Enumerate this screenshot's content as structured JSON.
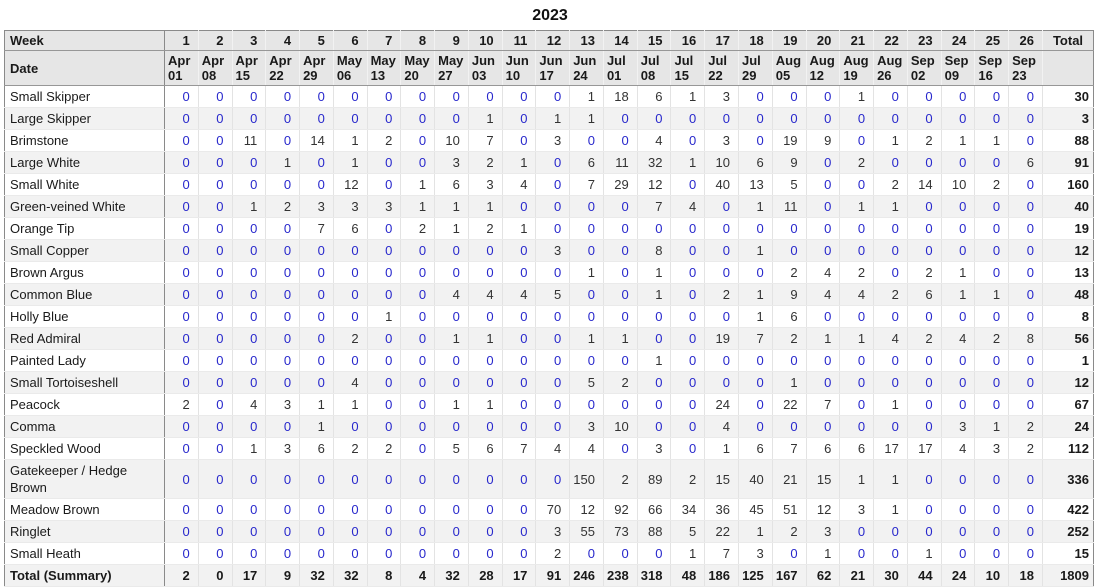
{
  "chart_data": {
    "type": "table",
    "title": "2023",
    "labels": {
      "week": "Week",
      "date": "Date",
      "total": "Total"
    },
    "weeks": [
      "1",
      "2",
      "3",
      "4",
      "5",
      "6",
      "7",
      "8",
      "9",
      "10",
      "11",
      "12",
      "13",
      "14",
      "15",
      "16",
      "17",
      "18",
      "19",
      "20",
      "21",
      "22",
      "23",
      "24",
      "25",
      "26"
    ],
    "dates": [
      "Apr 01",
      "Apr 08",
      "Apr 15",
      "Apr 22",
      "Apr 29",
      "May 06",
      "May 13",
      "May 20",
      "May 27",
      "Jun 03",
      "Jun 10",
      "Jun 17",
      "Jun 24",
      "Jul 01",
      "Jul 08",
      "Jul 15",
      "Jul 22",
      "Jul 29",
      "Aug 05",
      "Aug 12",
      "Aug 19",
      "Aug 26",
      "Sep 02",
      "Sep 09",
      "Sep 16",
      "Sep 23"
    ],
    "series": [
      {
        "name": "Small Skipper",
        "values": [
          0,
          0,
          0,
          0,
          0,
          0,
          0,
          0,
          0,
          0,
          0,
          0,
          1,
          18,
          6,
          1,
          3,
          0,
          0,
          0,
          1,
          0,
          0,
          0,
          0,
          0
        ],
        "total": 30
      },
      {
        "name": "Large Skipper",
        "values": [
          0,
          0,
          0,
          0,
          0,
          0,
          0,
          0,
          0,
          1,
          0,
          1,
          1,
          0,
          0,
          0,
          0,
          0,
          0,
          0,
          0,
          0,
          0,
          0,
          0,
          0
        ],
        "total": 3
      },
      {
        "name": "Brimstone",
        "values": [
          0,
          0,
          11,
          0,
          14,
          1,
          2,
          0,
          10,
          7,
          0,
          3,
          0,
          0,
          4,
          0,
          3,
          0,
          19,
          9,
          0,
          1,
          2,
          1,
          1,
          0
        ],
        "total": 88
      },
      {
        "name": "Large White",
        "values": [
          0,
          0,
          0,
          1,
          0,
          1,
          0,
          0,
          3,
          2,
          1,
          0,
          6,
          11,
          32,
          1,
          10,
          6,
          9,
          0,
          2,
          0,
          0,
          0,
          0,
          6
        ],
        "total": 91
      },
      {
        "name": "Small White",
        "values": [
          0,
          0,
          0,
          0,
          0,
          12,
          0,
          1,
          6,
          3,
          4,
          0,
          7,
          29,
          12,
          0,
          40,
          13,
          5,
          0,
          0,
          2,
          14,
          10,
          2,
          0
        ],
        "total": 160
      },
      {
        "name": "Green-veined White",
        "values": [
          0,
          0,
          1,
          2,
          3,
          3,
          3,
          1,
          1,
          1,
          0,
          0,
          0,
          0,
          7,
          4,
          0,
          1,
          11,
          0,
          1,
          1,
          0,
          0,
          0,
          0
        ],
        "total": 40
      },
      {
        "name": "Orange Tip",
        "values": [
          0,
          0,
          0,
          0,
          7,
          6,
          0,
          2,
          1,
          2,
          1,
          0,
          0,
          0,
          0,
          0,
          0,
          0,
          0,
          0,
          0,
          0,
          0,
          0,
          0,
          0
        ],
        "total": 19
      },
      {
        "name": "Small Copper",
        "values": [
          0,
          0,
          0,
          0,
          0,
          0,
          0,
          0,
          0,
          0,
          0,
          3,
          0,
          0,
          8,
          0,
          0,
          1,
          0,
          0,
          0,
          0,
          0,
          0,
          0,
          0
        ],
        "total": 12
      },
      {
        "name": "Brown Argus",
        "values": [
          0,
          0,
          0,
          0,
          0,
          0,
          0,
          0,
          0,
          0,
          0,
          0,
          1,
          0,
          1,
          0,
          0,
          0,
          2,
          4,
          2,
          0,
          2,
          1,
          0,
          0
        ],
        "total": 13
      },
      {
        "name": "Common Blue",
        "values": [
          0,
          0,
          0,
          0,
          0,
          0,
          0,
          0,
          4,
          4,
          4,
          5,
          0,
          0,
          1,
          0,
          2,
          1,
          9,
          4,
          4,
          2,
          6,
          1,
          1,
          0
        ],
        "total": 48
      },
      {
        "name": "Holly Blue",
        "values": [
          0,
          0,
          0,
          0,
          0,
          0,
          1,
          0,
          0,
          0,
          0,
          0,
          0,
          0,
          0,
          0,
          0,
          1,
          6,
          0,
          0,
          0,
          0,
          0,
          0,
          0
        ],
        "total": 8
      },
      {
        "name": "Red Admiral",
        "values": [
          0,
          0,
          0,
          0,
          0,
          2,
          0,
          0,
          1,
          1,
          0,
          0,
          1,
          1,
          0,
          0,
          19,
          7,
          2,
          1,
          1,
          4,
          2,
          4,
          2,
          8
        ],
        "total": 56
      },
      {
        "name": "Painted Lady",
        "values": [
          0,
          0,
          0,
          0,
          0,
          0,
          0,
          0,
          0,
          0,
          0,
          0,
          0,
          0,
          1,
          0,
          0,
          0,
          0,
          0,
          0,
          0,
          0,
          0,
          0,
          0
        ],
        "total": 1
      },
      {
        "name": "Small Tortoiseshell",
        "values": [
          0,
          0,
          0,
          0,
          0,
          4,
          0,
          0,
          0,
          0,
          0,
          0,
          5,
          2,
          0,
          0,
          0,
          0,
          1,
          0,
          0,
          0,
          0,
          0,
          0,
          0
        ],
        "total": 12
      },
      {
        "name": "Peacock",
        "values": [
          2,
          0,
          4,
          3,
          1,
          1,
          0,
          0,
          1,
          1,
          0,
          0,
          0,
          0,
          0,
          0,
          24,
          0,
          22,
          7,
          0,
          1,
          0,
          0,
          0,
          0
        ],
        "total": 67
      },
      {
        "name": "Comma",
        "values": [
          0,
          0,
          0,
          0,
          1,
          0,
          0,
          0,
          0,
          0,
          0,
          0,
          3,
          10,
          0,
          0,
          4,
          0,
          0,
          0,
          0,
          0,
          0,
          3,
          1,
          2
        ],
        "total": 24
      },
      {
        "name": "Speckled Wood",
        "values": [
          0,
          0,
          1,
          3,
          6,
          2,
          2,
          0,
          5,
          6,
          7,
          4,
          4,
          0,
          3,
          0,
          1,
          6,
          7,
          6,
          6,
          17,
          17,
          4,
          3,
          2
        ],
        "total": 112
      },
      {
        "name": "Gatekeeper / Hedge Brown",
        "values": [
          0,
          0,
          0,
          0,
          0,
          0,
          0,
          0,
          0,
          0,
          0,
          0,
          150,
          2,
          89,
          2,
          15,
          40,
          21,
          15,
          1,
          1,
          0,
          0,
          0,
          0
        ],
        "total": 336
      },
      {
        "name": "Meadow Brown",
        "values": [
          0,
          0,
          0,
          0,
          0,
          0,
          0,
          0,
          0,
          0,
          0,
          70,
          12,
          92,
          66,
          34,
          36,
          45,
          51,
          12,
          3,
          1,
          0,
          0,
          0,
          0
        ],
        "total": 422
      },
      {
        "name": "Ringlet",
        "values": [
          0,
          0,
          0,
          0,
          0,
          0,
          0,
          0,
          0,
          0,
          0,
          3,
          55,
          73,
          88,
          5,
          22,
          1,
          2,
          3,
          0,
          0,
          0,
          0,
          0,
          0
        ],
        "total": 252
      },
      {
        "name": "Small Heath",
        "values": [
          0,
          0,
          0,
          0,
          0,
          0,
          0,
          0,
          0,
          0,
          0,
          2,
          0,
          0,
          0,
          1,
          7,
          3,
          0,
          1,
          0,
          0,
          1,
          0,
          0,
          0
        ],
        "total": 15
      }
    ],
    "summary": {
      "name": "Total (Summary)",
      "values": [
        2,
        0,
        17,
        9,
        32,
        32,
        8,
        4,
        32,
        28,
        17,
        91,
        246,
        238,
        318,
        48,
        186,
        125,
        167,
        62,
        21,
        30,
        44,
        24,
        10,
        18
      ],
      "total": 1809
    },
    "layout_hints": {
      "zero_link_color": "#2828cc",
      "value_text_color": "#333333",
      "header_bg": "#e6e6e6",
      "stripe_bg": "#f2f2f2",
      "dark_border": "#8a8a8a"
    }
  }
}
